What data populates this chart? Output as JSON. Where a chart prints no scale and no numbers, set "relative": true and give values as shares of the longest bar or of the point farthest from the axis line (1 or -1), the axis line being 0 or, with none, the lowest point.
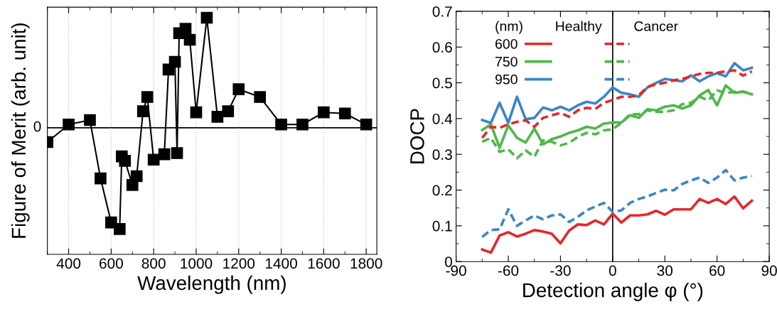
{
  "chart_data": [
    {
      "type": "line",
      "xlabel": "Wavelength (nm)",
      "ylabel": "Figure of Merit (arb. unit)",
      "relative": true,
      "marker": "square",
      "grid": "x",
      "x": [
        300,
        400,
        500,
        550,
        600,
        640,
        650,
        665,
        700,
        720,
        750,
        770,
        800,
        850,
        870,
        900,
        910,
        920,
        950,
        970,
        1000,
        1050,
        1100,
        1150,
        1200,
        1300,
        1400,
        1500,
        1600,
        1700,
        1800
      ],
      "xlim": [
        300,
        1850
      ],
      "xticks": [
        400,
        600,
        800,
        1000,
        1200,
        1400,
        1600,
        1800
      ],
      "ref_lines": [
        {
          "axis": "y",
          "value": 0,
          "label": "0"
        }
      ],
      "series": [
        {
          "color": "#000000",
          "values": [
            -0.13,
            0.03,
            0.07,
            -0.46,
            -0.86,
            -0.92,
            -0.26,
            -0.3,
            -0.52,
            -0.44,
            0.15,
            0.28,
            -0.29,
            -0.24,
            0.53,
            0.6,
            -0.23,
            0.86,
            0.9,
            0.8,
            0.14,
            1,
            0.1,
            0.15,
            0.35,
            0.28,
            0.03,
            0.03,
            0.14,
            0.13,
            0.03
          ]
        }
      ]
    },
    {
      "type": "line",
      "xlabel": "Detection angle φ (°)",
      "ylabel": "DOCP",
      "legend": "top left",
      "legend_title": "(nm)",
      "annotations": [
        "Healthy",
        "Cancer"
      ],
      "x": [
        -75,
        -70,
        -65,
        -60,
        -55,
        -50,
        -45,
        -40,
        -35,
        -30,
        -25,
        -20,
        -15,
        -10,
        -5,
        0,
        5,
        10,
        15,
        20,
        25,
        30,
        35,
        40,
        45,
        50,
        55,
        60,
        65,
        70,
        75,
        80
      ],
      "xlim": [
        -90,
        90
      ],
      "xticks": [
        -90,
        -60,
        -30,
        0,
        30,
        60,
        90
      ],
      "ylim": [
        0,
        0.7
      ],
      "yticks": [
        0,
        0.1,
        0.2,
        0.3,
        0.4,
        0.5,
        0.6,
        0.7
      ],
      "ref_lines": [
        {
          "axis": "x",
          "value": 0,
          "label": null
        }
      ],
      "series": [
        {
          "name": "600",
          "color": "#e8262a",
          "line_style": "solid",
          "values": [
            0.034,
            0.025,
            0.073,
            0.082,
            0.07,
            0.078,
            0.088,
            0.084,
            0.078,
            0.051,
            0.087,
            0.104,
            0.102,
            0.115,
            0.104,
            0.134,
            0.109,
            0.129,
            0.129,
            0.132,
            0.142,
            0.131,
            0.146,
            0.146,
            0.146,
            0.175,
            0.164,
            0.175,
            0.161,
            0.182,
            0.149,
            0.17
          ]
        },
        {
          "name": "750",
          "color": "#4db848",
          "line_style": "solid",
          "values": [
            0.368,
            0.384,
            0.318,
            0.381,
            0.346,
            0.333,
            0.372,
            0.328,
            0.342,
            0.35,
            0.36,
            0.367,
            0.377,
            0.372,
            0.386,
            0.389,
            0.389,
            0.409,
            0.402,
            0.426,
            0.423,
            0.433,
            0.437,
            0.428,
            0.437,
            0.465,
            0.48,
            0.437,
            0.493,
            0.472,
            0.475,
            0.468
          ]
        },
        {
          "name": "950",
          "color": "#3a86c8",
          "line_style": "solid",
          "values": [
            0.396,
            0.388,
            0.444,
            0.388,
            0.461,
            0.398,
            0.402,
            0.431,
            0.423,
            0.433,
            0.423,
            0.437,
            0.447,
            0.442,
            0.461,
            0.487,
            0.472,
            0.468,
            0.461,
            0.487,
            0.5,
            0.511,
            0.507,
            0.504,
            0.521,
            0.504,
            0.518,
            0.527,
            0.518,
            0.555,
            0.535,
            0.542
          ]
        },
        {
          "color": "#e8262a",
          "line_style": "dashed",
          "values": [
            0.346,
            0.377,
            0.374,
            0.384,
            0.391,
            0.395,
            0.377,
            0.402,
            0.409,
            0.416,
            0.405,
            0.423,
            0.43,
            0.427,
            0.444,
            0.452,
            0.461,
            0.461,
            0.465,
            0.489,
            0.496,
            0.5,
            0.507,
            0.511,
            0.518,
            0.525,
            0.528,
            0.528,
            0.532,
            0.535,
            0.52,
            0.532
          ]
        },
        {
          "color": "#4db848",
          "line_style": "dashed",
          "values": [
            0.335,
            0.346,
            0.307,
            0.314,
            0.289,
            0.311,
            0.293,
            0.339,
            0.335,
            0.325,
            0.332,
            0.349,
            0.36,
            0.356,
            0.367,
            0.37,
            0.388,
            0.412,
            0.412,
            0.423,
            0.419,
            0.419,
            0.423,
            0.44,
            0.444,
            0.461,
            0.451,
            0.479,
            0.471,
            0.475,
            0.475,
            0.471
          ]
        },
        {
          "color": "#3a86c8",
          "line_style": "dashed",
          "values": [
            0.069,
            0.088,
            0.09,
            0.146,
            0.1,
            0.115,
            0.129,
            0.118,
            0.129,
            0.132,
            0.111,
            0.125,
            0.143,
            0.154,
            0.164,
            0.139,
            0.143,
            0.164,
            0.175,
            0.182,
            0.192,
            0.201,
            0.199,
            0.217,
            0.227,
            0.235,
            0.22,
            0.235,
            0.256,
            0.227,
            0.235,
            0.239
          ]
        }
      ]
    }
  ]
}
